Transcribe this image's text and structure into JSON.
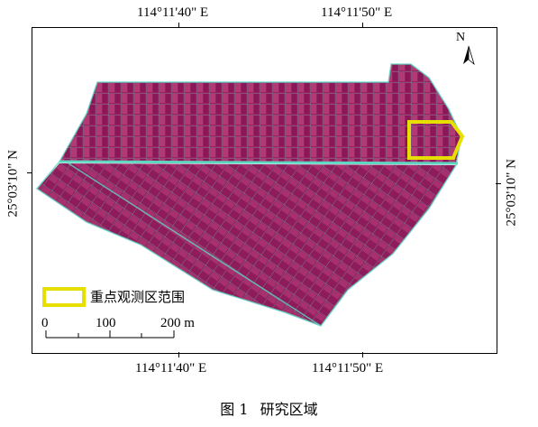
{
  "coords": {
    "top_left": "114°11'40\" E",
    "top_right": "114°11'50\" E",
    "bottom_left": "114°11'40\" E",
    "bottom_right": "114°11'50\" E",
    "left": "25°03'10\" N",
    "right": "25°03'10\" N"
  },
  "north_label": "N",
  "legend": {
    "label": "重点观测区范围",
    "color": "#e6e000"
  },
  "scale": {
    "labels": [
      "0",
      "100",
      "200 m"
    ]
  },
  "caption": {
    "figure": "图 1",
    "title": "研究区域"
  },
  "colors": {
    "field": "#9b1f63",
    "field_light": "#c25a8e",
    "edge": "#5fd6c2",
    "frame": "#000000"
  }
}
